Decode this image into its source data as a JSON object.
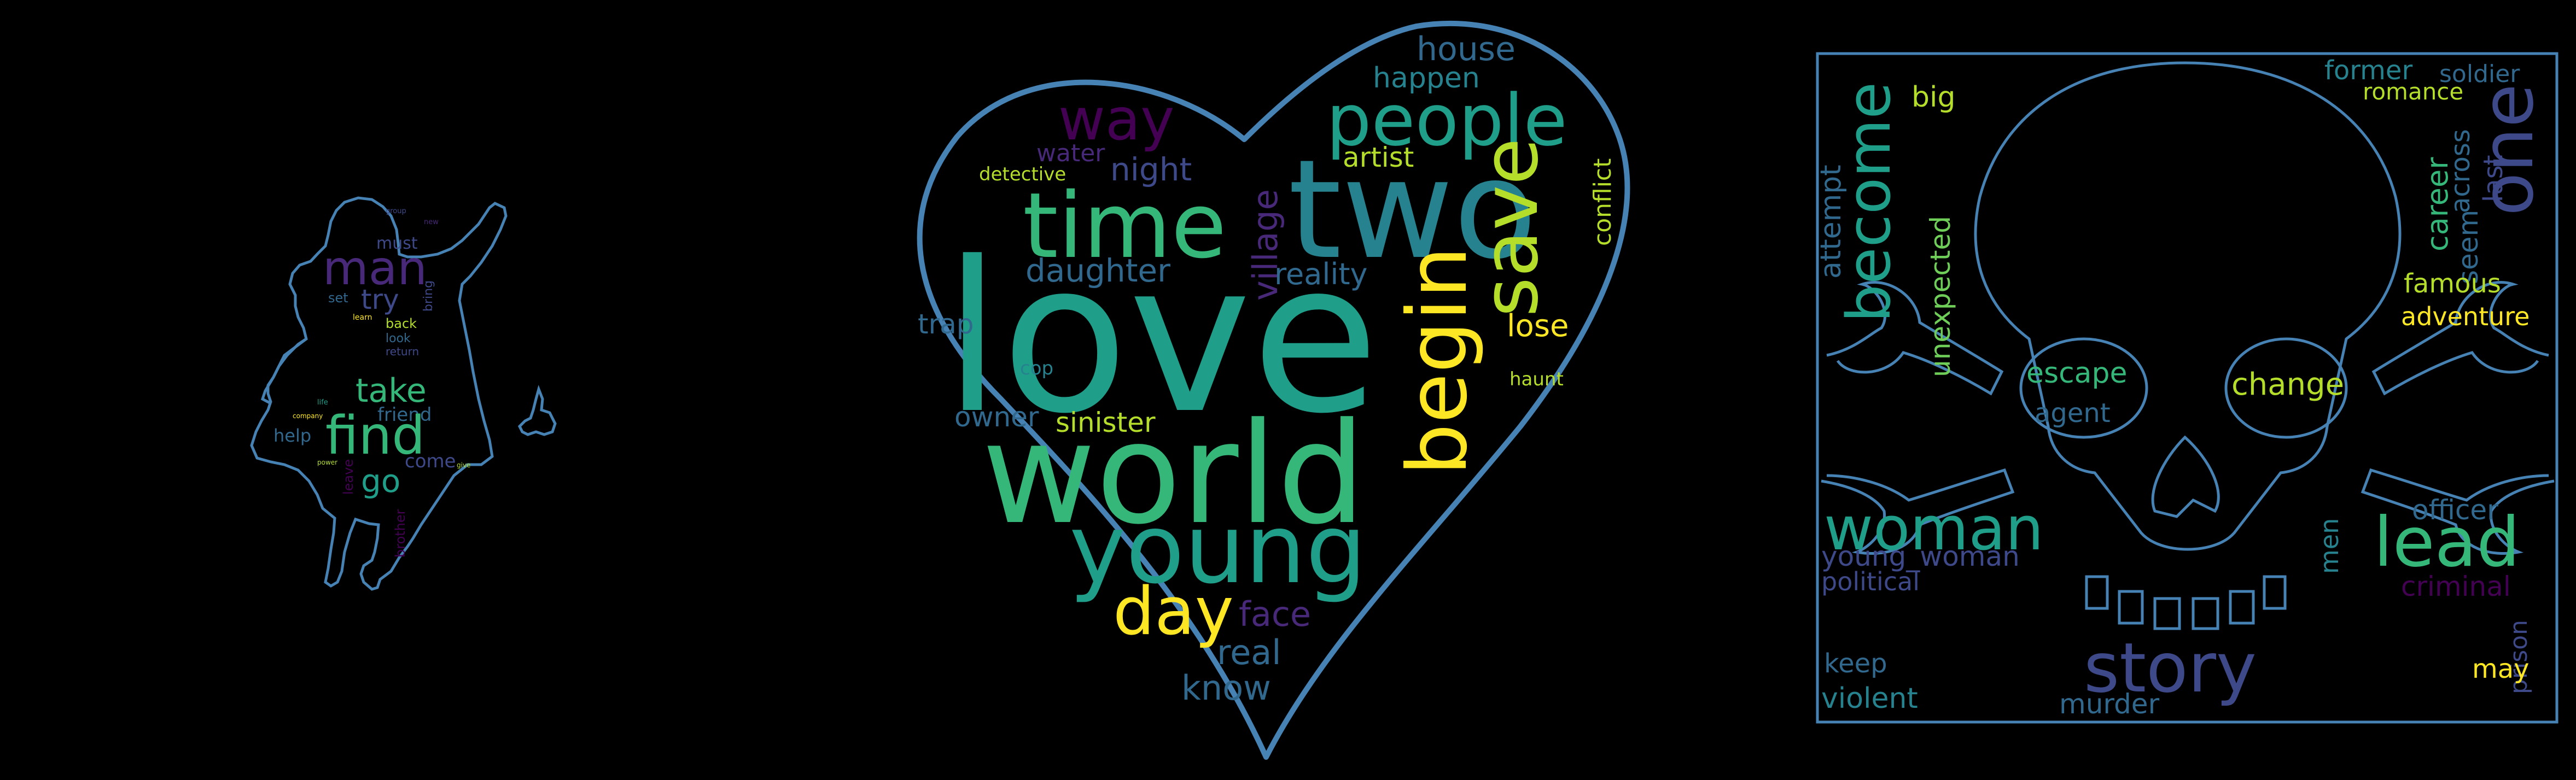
{
  "palette": {
    "background": "#000000",
    "outline": "#4682b4",
    "dark_purple": "#440154",
    "purple": "#482878",
    "indigo": "#3e4989",
    "blue": "#31688e",
    "teal": "#26828e",
    "green_teal": "#1f9e89",
    "green": "#35b779",
    "lime": "#6ece58",
    "yellow_green": "#b5de2b",
    "yellow": "#fde725"
  },
  "clouds": [
    {
      "name": "girl-silhouette-cloud",
      "shape": "running-girl",
      "words": [
        "find",
        "man",
        "take",
        "go",
        "try",
        "must",
        "friend",
        "help",
        "back",
        "look",
        "return",
        "set",
        "bring",
        "leave",
        "come",
        "brother",
        "learn",
        "company",
        "power",
        "give",
        "life",
        "group",
        "new"
      ]
    },
    {
      "name": "heart-cloud",
      "shape": "heart",
      "words": [
        "love",
        "two",
        "world",
        "time",
        "people",
        "young",
        "save",
        "begin",
        "way",
        "day",
        "house",
        "happen",
        "night",
        "artist",
        "daughter",
        "village",
        "reality",
        "conflict",
        "lose",
        "water",
        "detective",
        "trap",
        "cop",
        "owner",
        "sinister",
        "haunt",
        "face",
        "real",
        "know"
      ]
    },
    {
      "name": "skull-cloud",
      "shape": "skull-and-crossbones",
      "words": [
        "story",
        "one",
        "woman",
        "become",
        "lead",
        "big",
        "former",
        "soldier",
        "romance",
        "across",
        "career",
        "last",
        "seem",
        "famous",
        "adventure",
        "attempt",
        "unexpected",
        "escape",
        "agent",
        "change",
        "officer",
        "men",
        "criminal",
        "young_woman",
        "political",
        "prison",
        "keep",
        "violent",
        "murder",
        "may"
      ]
    }
  ]
}
